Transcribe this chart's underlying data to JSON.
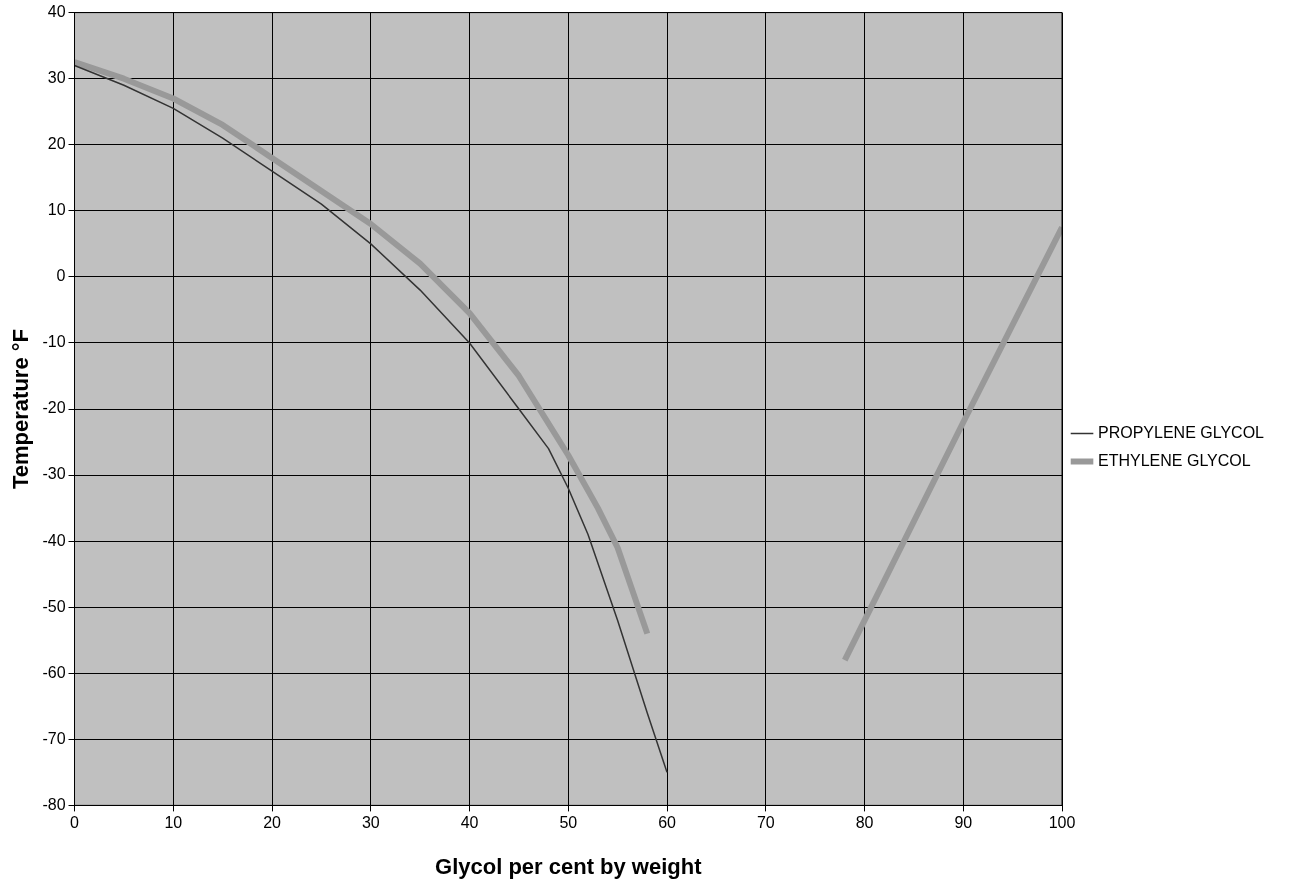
{
  "chart_data": {
    "type": "line",
    "xlabel": "Glycol per cent by weight",
    "ylabel": "Temperature °F",
    "series": [
      {
        "name": "PROPYLENE GLYCOL",
        "color": "#333333",
        "x": [
          0,
          5,
          10,
          15,
          20,
          25,
          30,
          35,
          40,
          45,
          48,
          50,
          52,
          55,
          58,
          60
        ],
        "values": [
          32,
          29,
          25.5,
          21,
          16,
          11,
          5,
          -2,
          -10,
          -20,
          -26,
          -32,
          -39,
          -52,
          -66,
          -75
        ]
      },
      {
        "name": "ETHYLENE GLYCOL",
        "color": "#999999",
        "x": [
          0,
          5,
          10,
          15,
          20,
          25,
          30,
          35,
          40,
          45,
          50,
          53,
          55,
          58,
          68,
          78,
          90,
          100
        ],
        "values": [
          32.5,
          30,
          27,
          23,
          18,
          13,
          8,
          2,
          -5.5,
          -15,
          -27,
          -35,
          -41,
          -54,
          null,
          -58,
          -22,
          7.5
        ]
      }
    ],
    "xlim": [
      0,
      100
    ],
    "xticks": [
      0,
      10,
      20,
      30,
      40,
      50,
      60,
      70,
      80,
      90,
      100
    ],
    "ylim": [
      -80,
      40
    ],
    "yticks": [
      -80,
      -70,
      -60,
      -50,
      -40,
      -30,
      -20,
      -10,
      0,
      10,
      20,
      30,
      40
    ],
    "grid": true,
    "legend": "right",
    "marker": "none",
    "line_style": "solid"
  }
}
